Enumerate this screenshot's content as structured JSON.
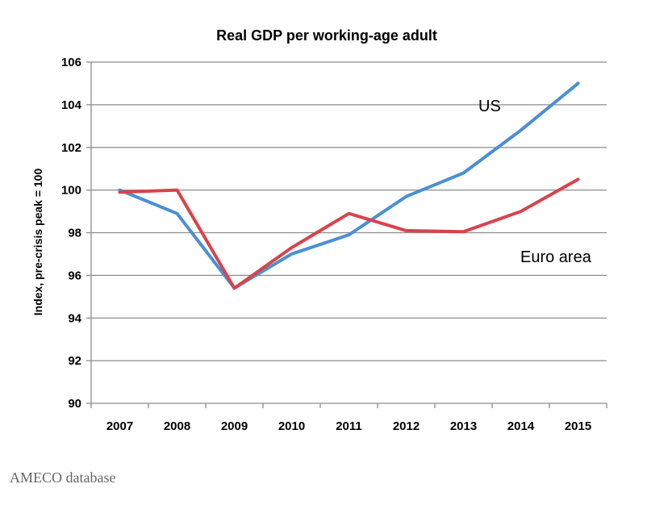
{
  "source_note": "AMECO database",
  "chart_data": {
    "type": "line",
    "title": "Real GDP per working-age adult",
    "xlabel": "",
    "ylabel": "Index, pre-crisis peak = 100",
    "x": [
      "2007",
      "2008",
      "2009",
      "2010",
      "2011",
      "2012",
      "2013",
      "2014",
      "2015"
    ],
    "ylim": [
      90,
      106
    ],
    "yticks": [
      90,
      92,
      94,
      96,
      98,
      100,
      102,
      104,
      106
    ],
    "grid": true,
    "series": [
      {
        "name": "US",
        "color": "#4a8fd4",
        "values": [
          100.0,
          98.9,
          95.4,
          97.0,
          97.9,
          99.7,
          100.8,
          102.8,
          105.0
        ]
      },
      {
        "name": "Euro area",
        "color": "#d9434b",
        "values": [
          99.9,
          100.0,
          95.4,
          97.3,
          98.9,
          98.1,
          98.05,
          99.0,
          100.5
        ]
      }
    ]
  }
}
